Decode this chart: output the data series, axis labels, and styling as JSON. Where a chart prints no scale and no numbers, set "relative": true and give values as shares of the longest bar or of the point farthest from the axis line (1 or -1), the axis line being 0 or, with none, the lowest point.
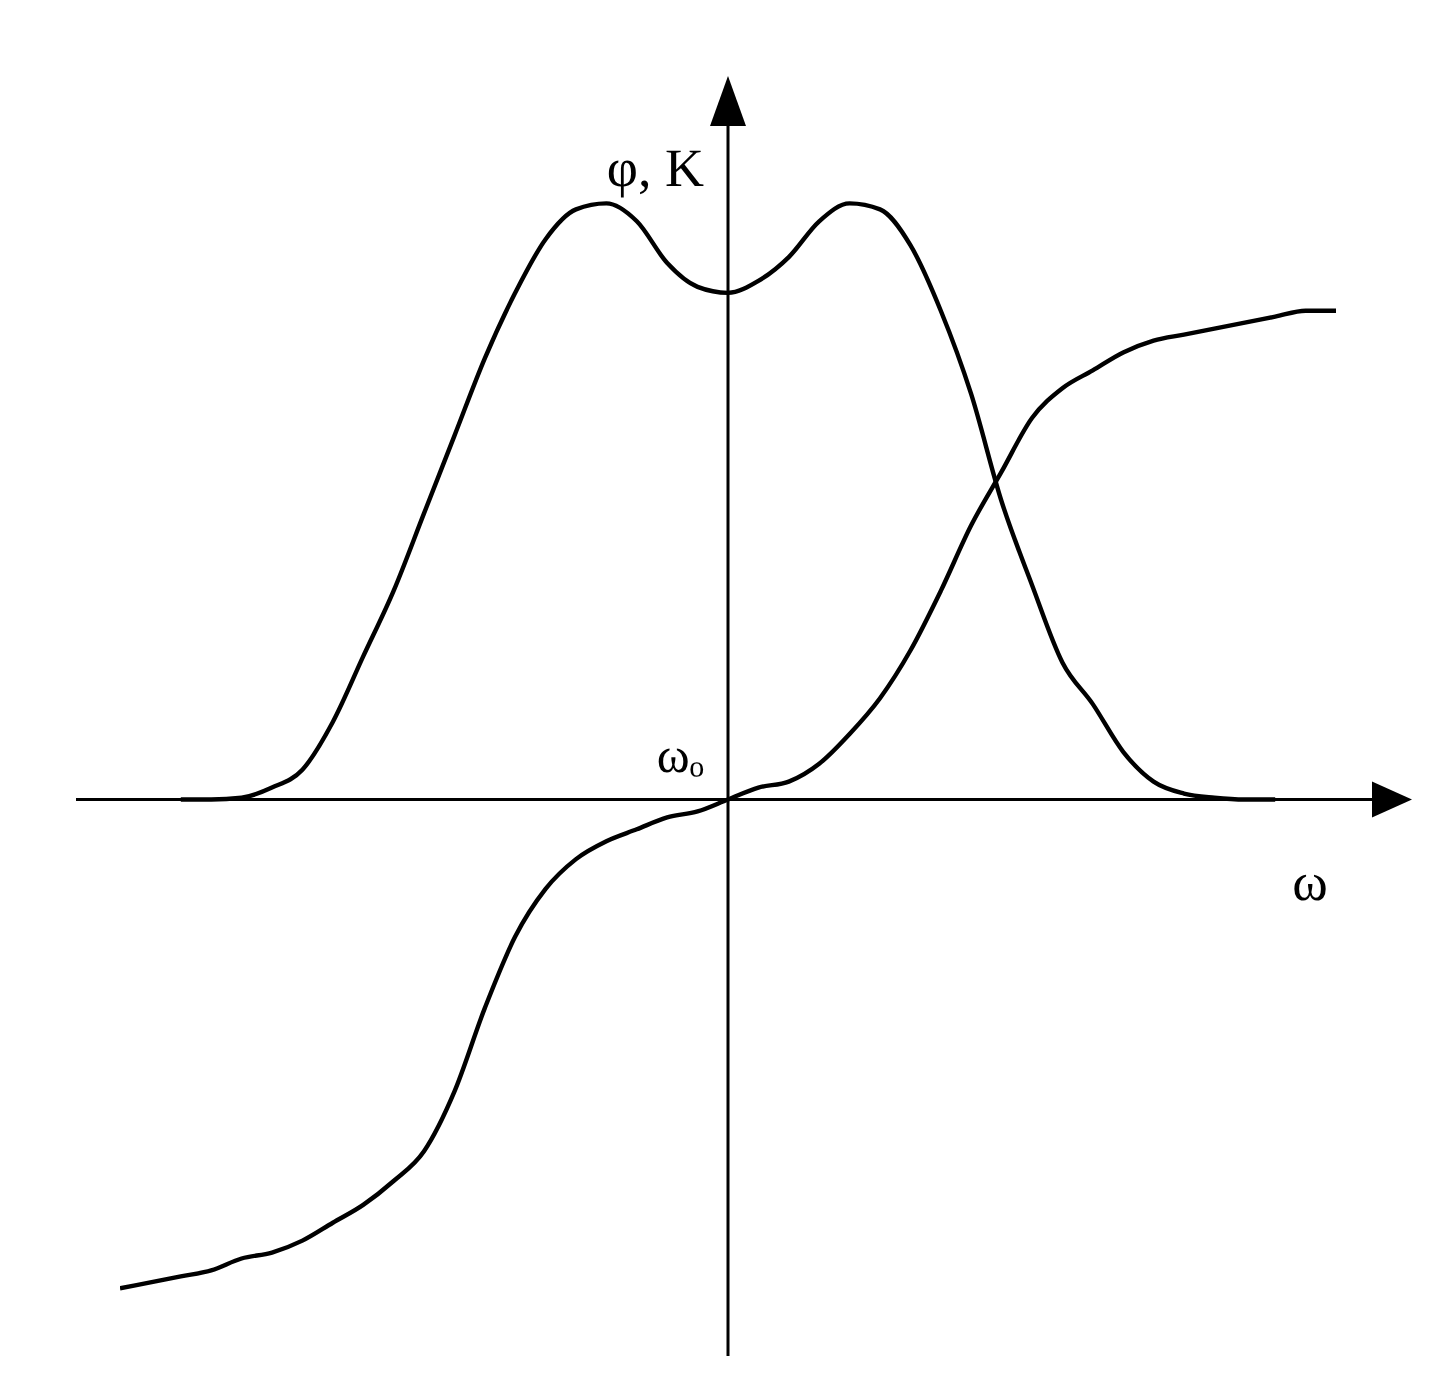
{
  "chart_data": {
    "type": "line",
    "relative": true,
    "xlabel": "ω",
    "ylabel": "φ, K",
    "annotations": [
      "ωₒ"
    ],
    "tick_labels": false,
    "categories": [
      null,
      null,
      null,
      null,
      null,
      null,
      null,
      null,
      null,
      null,
      null,
      null,
      null,
      null,
      null,
      null,
      null,
      null,
      null,
      null,
      null,
      null,
      null,
      null,
      null,
      null,
      null,
      null,
      null,
      null,
      null,
      null,
      null,
      null,
      null,
      null,
      null,
      null,
      null,
      null,
      null
    ],
    "series": [
      {
        "color": "#000000",
        "values": [
          null,
          null,
          0,
          0,
          0.003,
          0.02,
          0.05,
          0.13,
          0.24,
          0.35,
          0.48,
          0.61,
          0.74,
          0.85,
          0.94,
          0.99,
          1,
          0.97,
          0.9,
          0.86,
          0.85,
          0.87,
          0.91,
          0.97,
          1,
          0.99,
          0.93,
          0.82,
          0.68,
          0.5,
          0.36,
          0.23,
          0.16,
          0.08,
          0.03,
          0.01,
          0.003,
          0,
          0,
          null,
          null
        ]
      },
      {
        "color": "#000000",
        "values": [
          -0.82,
          -0.81,
          -0.8,
          -0.79,
          -0.77,
          -0.76,
          -0.74,
          -0.71,
          -0.68,
          -0.64,
          -0.59,
          -0.49,
          -0.35,
          -0.23,
          -0.15,
          -0.1,
          -0.07,
          -0.05,
          -0.03,
          -0.02,
          0,
          0.02,
          0.03,
          0.06,
          0.11,
          0.17,
          0.25,
          0.35,
          0.46,
          0.55,
          0.64,
          0.69,
          0.72,
          0.75,
          0.77,
          0.78,
          0.79,
          0.8,
          0.81,
          0.82,
          0.82
        ]
      }
    ]
  }
}
